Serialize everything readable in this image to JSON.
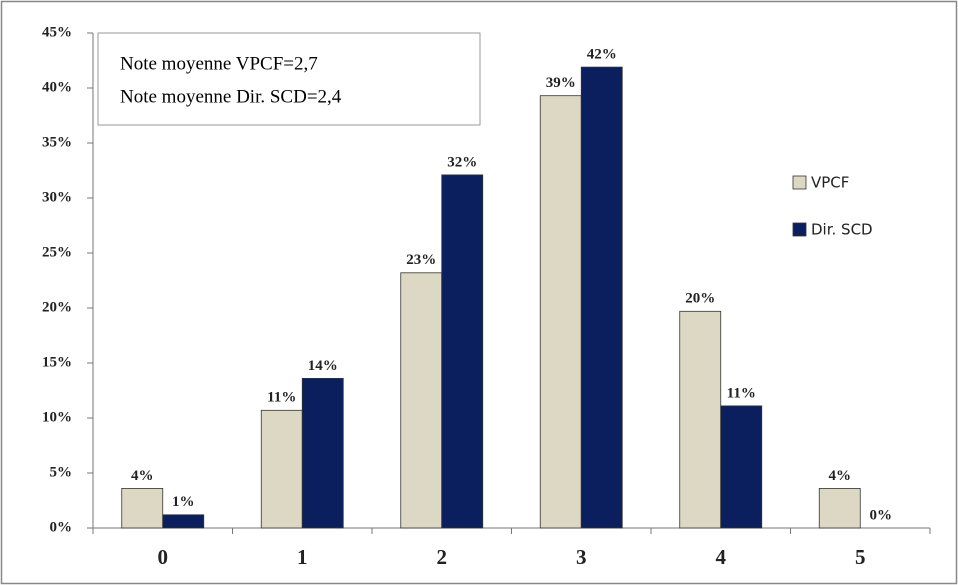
{
  "chart_data": {
    "type": "bar",
    "categories": [
      "0",
      "1",
      "2",
      "3",
      "4",
      "5"
    ],
    "series": [
      {
        "name": "VPCF",
        "color": "#ddd8c4",
        "values": [
          3.6,
          10.7,
          23.2,
          39.3,
          19.7,
          3.6
        ],
        "value_labels": [
          "4%",
          "11%",
          "23%",
          "39%",
          "20%",
          "4%"
        ]
      },
      {
        "name": "Dir. SCD",
        "color": "#0b1f5e",
        "values": [
          1.2,
          13.6,
          32.1,
          41.9,
          11.1,
          0
        ],
        "value_labels": [
          "1%",
          "14%",
          "32%",
          "42%",
          "11%",
          "0%"
        ]
      }
    ],
    "ylim": [
      0,
      45
    ],
    "yticks": [
      {
        "value": 0,
        "label": "0%"
      },
      {
        "value": 5,
        "label": "5%"
      },
      {
        "value": 10,
        "label": "10%"
      },
      {
        "value": 15,
        "label": "15%"
      },
      {
        "value": 20,
        "label": "20%"
      },
      {
        "value": 25,
        "label": "25%"
      },
      {
        "value": 30,
        "label": "30%"
      },
      {
        "value": 35,
        "label": "35%"
      },
      {
        "value": 40,
        "label": "40%"
      },
      {
        "value": 45,
        "label": "45%"
      }
    ],
    "annotations": [
      "Note moyenne VPCF=2,7",
      "Note moyenne Dir. SCD=2,4"
    ],
    "legend": "right",
    "grid": false
  }
}
